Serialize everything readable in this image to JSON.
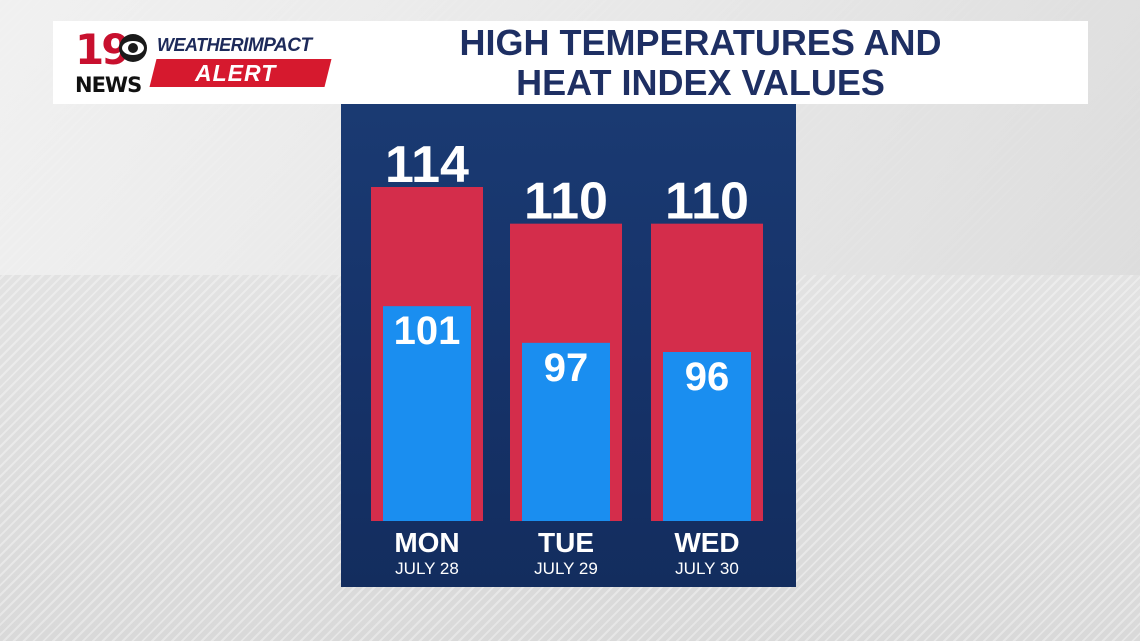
{
  "header": {
    "logo_number": "19",
    "logo_network": "NEWS",
    "brand_weather": "WEATHER",
    "brand_impact": "IMPACT",
    "brand_alert": "ALERT",
    "title_line1": "HIGH TEMPERATURES AND",
    "title_line2": "HEAT INDEX VALUES"
  },
  "colors": {
    "heat_index_bar": "#d42d4b",
    "high_temp_bar": "#1a8ef0",
    "panel_bg": "#16336a",
    "title": "#1e2f63",
    "alert_red": "#d6192e"
  },
  "chart_data": {
    "type": "bar",
    "title": "HIGH TEMPERATURES AND HEAT INDEX VALUES",
    "categories": [
      "MON",
      "TUE",
      "WED"
    ],
    "subcategories": [
      "JULY 28",
      "JULY 29",
      "JULY 30"
    ],
    "series": [
      {
        "values": [
          114,
          110,
          110
        ]
      },
      {
        "values": [
          101,
          97,
          96
        ]
      }
    ],
    "overlapped": true,
    "ylim": [
      0,
      130
    ],
    "grid": false
  }
}
